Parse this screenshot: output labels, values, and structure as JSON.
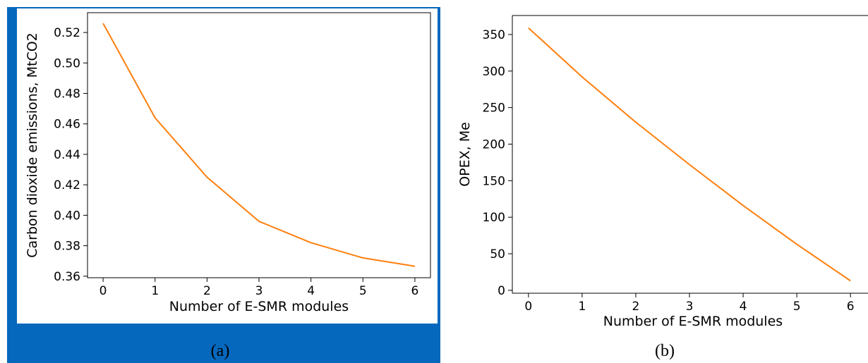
{
  "chart_data": [
    {
      "type": "line",
      "panel": "(a)",
      "title": "",
      "xlabel": "Number of E-SMR modules",
      "ylabel": "Carbon dioxide emissions, MtCO2",
      "x": [
        0,
        1,
        2,
        3,
        4,
        5,
        6
      ],
      "series": [
        {
          "values": [
            0.526,
            0.464,
            0.425,
            0.396,
            0.382,
            0.372,
            0.3665
          ]
        }
      ],
      "xlim": [
        -0.3,
        6.3
      ],
      "ylim": [
        0.359,
        0.533
      ],
      "xticks": [
        "0",
        "1",
        "2",
        "3",
        "4",
        "5",
        "6"
      ],
      "yticks": [
        "0.36",
        "0.38",
        "0.40",
        "0.42",
        "0.44",
        "0.46",
        "0.48",
        "0.50",
        "0.52"
      ],
      "grid": false,
      "line_color": "#ff7f0e",
      "background_color": "#0568bd"
    },
    {
      "type": "line",
      "panel": "(b)",
      "title": "",
      "xlabel": "Number of E-SMR modules",
      "ylabel": "OPEX, Me",
      "x": [
        0,
        1,
        2,
        3,
        4,
        5,
        6
      ],
      "series": [
        {
          "values": [
            359,
            292,
            230,
            172,
            116,
            63,
            13
          ]
        }
      ],
      "xlim": [
        -0.3,
        6.3
      ],
      "ylim": [
        -4,
        376
      ],
      "xticks": [
        "0",
        "1",
        "2",
        "3",
        "4",
        "5",
        "6"
      ],
      "yticks": [
        "0",
        "50",
        "100",
        "150",
        "200",
        "250",
        "300",
        "350"
      ],
      "grid": false,
      "line_color": "#ff7f0e"
    }
  ]
}
